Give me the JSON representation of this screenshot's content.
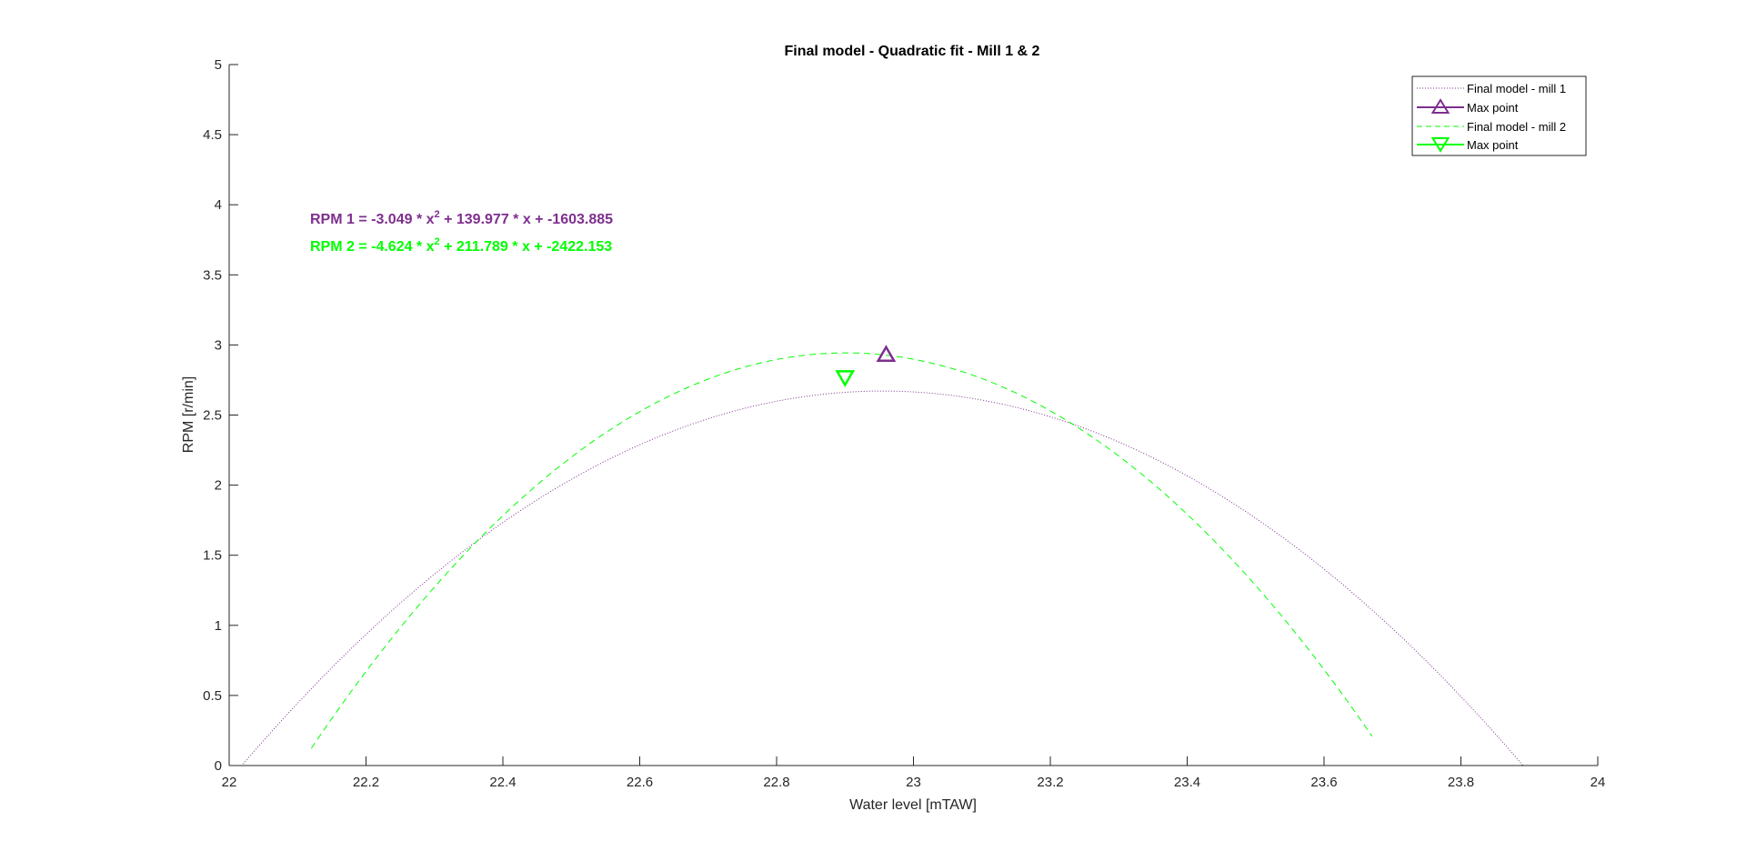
{
  "chart_data": {
    "type": "line",
    "title": "Final model - Quadratic fit - Mill 1 & 2",
    "xlabel": "Water level [mTAW]",
    "ylabel": "RPM [r/min]",
    "xlim": [
      22,
      24
    ],
    "ylim": [
      0,
      5
    ],
    "xticks": [
      22,
      22.2,
      22.4,
      22.6,
      22.8,
      23,
      23.2,
      23.4,
      23.6,
      23.8,
      24
    ],
    "xtick_labels": [
      "22",
      "22.2",
      "22.4",
      "22.6",
      "22.8",
      "23",
      "23.2",
      "23.4",
      "23.6",
      "23.8",
      "24"
    ],
    "yticks": [
      0,
      0.5,
      1,
      1.5,
      2,
      2.5,
      3,
      3.5,
      4,
      4.5,
      5
    ],
    "ytick_labels": [
      "0",
      "0.5",
      "1",
      "1.5",
      "2",
      "2.5",
      "3",
      "3.5",
      "4",
      "4.5",
      "5"
    ],
    "grid": false,
    "legend_position": "top-right",
    "series": [
      {
        "name": "Final model - mill 1",
        "style": "dotted",
        "color": "#7e2f8e",
        "coefficients": [
          -3.049,
          139.977,
          -1603.885
        ],
        "x_range": [
          22,
          23.94
        ],
        "sample_points": [
          [
            22.0,
            0.13
          ],
          [
            22.4,
            1.95
          ],
          [
            22.8,
            2.86
          ],
          [
            22.96,
            2.92
          ],
          [
            23.2,
            2.72
          ],
          [
            23.6,
            1.4
          ],
          [
            23.94,
            0.0
          ]
        ]
      },
      {
        "name": "Max point",
        "marker": "triangle-up",
        "color": "#7e2f8e",
        "x": [
          22.96
        ],
        "y": [
          2.92
        ]
      },
      {
        "name": "Final model - mill 2",
        "style": "dashed",
        "color": "#00ff00",
        "coefficients": [
          -4.624,
          211.789,
          -2422.153
        ],
        "x_range": [
          22.12,
          23.67
        ],
        "sample_points": [
          [
            22.12,
            0.0
          ],
          [
            22.4,
            1.7
          ],
          [
            22.6,
            2.46
          ],
          [
            22.9,
            2.78
          ],
          [
            23.2,
            2.34
          ],
          [
            23.5,
            1.12
          ],
          [
            23.67,
            0.0
          ]
        ]
      },
      {
        "name": "Max point",
        "marker": "triangle-down",
        "color": "#00ff00",
        "x": [
          22.9
        ],
        "y": [
          2.78
        ]
      }
    ],
    "annotations": [
      {
        "prefix": "RPM 1 = -3.049 * x",
        "sup": "2",
        "suffix": " + 139.977 * x + -1603.885",
        "color": "#7e2f8e"
      },
      {
        "prefix": "RPM 2 = -4.624 * x",
        "sup": "2",
        "suffix": " + 211.789 * x + -2422.153",
        "color": "#00ff00"
      }
    ]
  }
}
